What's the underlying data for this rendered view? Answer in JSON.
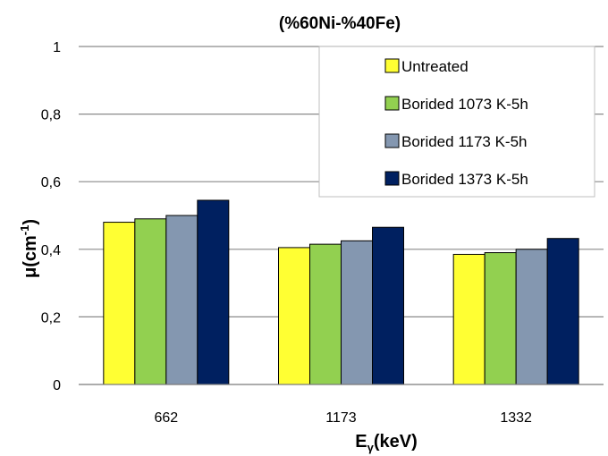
{
  "chart_data": {
    "type": "bar",
    "title": "(%60Ni-%40Fe)",
    "xlabel": {
      "base": "E",
      "sub": "γ",
      "suffix": "(keV)"
    },
    "ylabel": {
      "base": "μ(cm",
      "sup": "-1",
      "suffix": ")"
    },
    "categories": [
      "662",
      "1173",
      "1332"
    ],
    "ylim": [
      0,
      1
    ],
    "yticks": [
      "0",
      "0,2",
      "0,4",
      "0,6",
      "0,8",
      "1"
    ],
    "ytick_values": [
      0,
      0.2,
      0.4,
      0.6,
      0.8,
      1
    ],
    "grid": true,
    "legend_position": "top-right",
    "series": [
      {
        "name": "Untreated",
        "color": "#FFFF33",
        "values": [
          0.48,
          0.405,
          0.385
        ]
      },
      {
        "name": "Borided 1073 K-5h",
        "color": "#92D050",
        "values": [
          0.49,
          0.415,
          0.39
        ]
      },
      {
        "name": "Borided 1173 K-5h",
        "color": "#8497B0",
        "values": [
          0.5,
          0.425,
          0.4
        ]
      },
      {
        "name": "Borided 1373 K-5h",
        "color": "#002060",
        "values": [
          0.545,
          0.465,
          0.432
        ]
      }
    ]
  }
}
